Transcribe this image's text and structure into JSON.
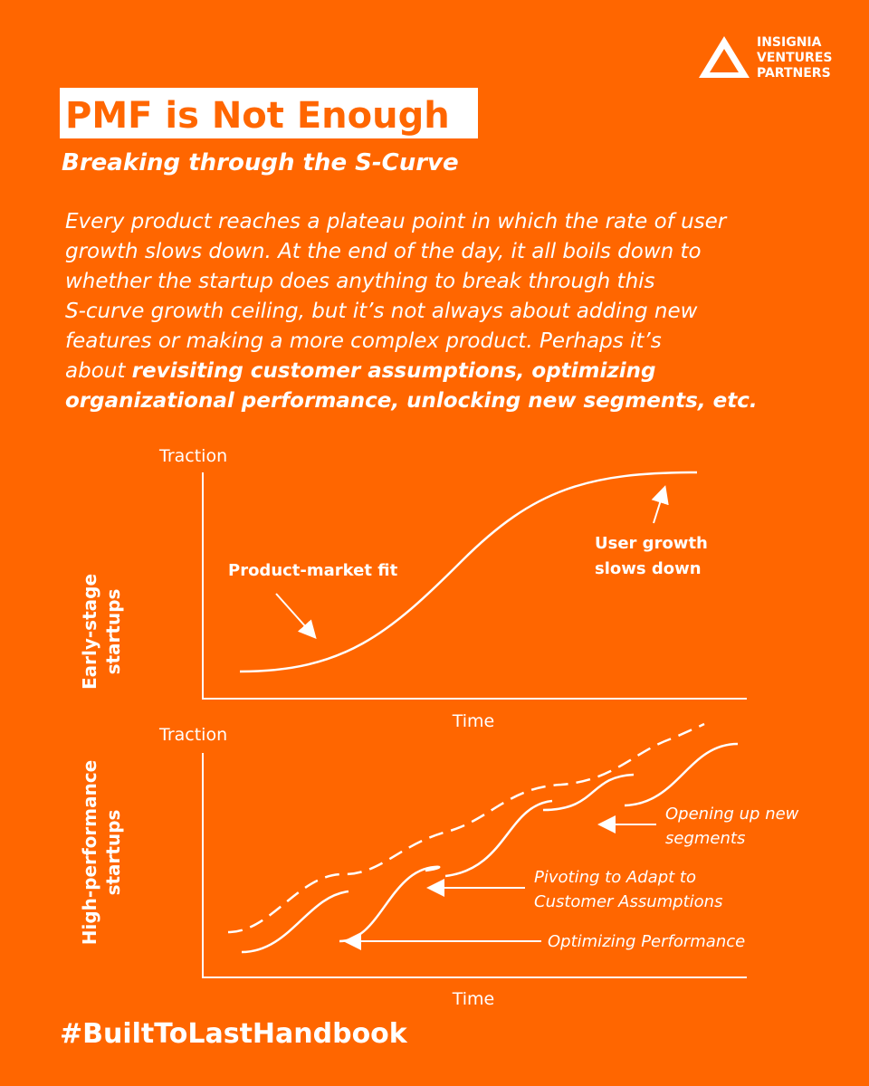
{
  "logo": {
    "lines": [
      "INSIGNIA",
      "VENTURES",
      "PARTNERS"
    ]
  },
  "header": {
    "title": "PMF is Not Enough",
    "subtitle": "Breaking through the S-Curve"
  },
  "paragraph": {
    "lines": [
      {
        "normal": "Every product reaches a plateau point in which the rate of user"
      },
      {
        "normal": "growth slows down. At the end of the day, it all boils down to"
      },
      {
        "normal": "whether the startup does anything to break through this"
      },
      {
        "normal": "S-curve growth ceiling, but it’s not always about adding new"
      },
      {
        "normal": "features or making a more complex product. Perhaps it’s"
      },
      {
        "normal": "about ",
        "bold": "revisiting customer assumptions, optimizing"
      },
      {
        "bold": "organizational performance, unlocking new segments, etc."
      }
    ]
  },
  "diagrams": [
    {
      "row_label": [
        "Early-stage",
        "startups"
      ],
      "y_label": "Traction",
      "x_label": "Time",
      "annotations": [
        [
          "Product-market fit"
        ],
        [
          "User growth",
          "slows down"
        ]
      ]
    },
    {
      "row_label": [
        "High-performance",
        "startups"
      ],
      "y_label": "Traction",
      "x_label": "Time",
      "annotations": [
        [
          "Opening up new",
          "segments"
        ],
        [
          "Pivoting to Adapt to",
          "Customer Assumptions"
        ],
        [
          "Optimizing Performance"
        ]
      ]
    }
  ],
  "footer": {
    "hashtag": "#BuiltToLastHandbook"
  }
}
